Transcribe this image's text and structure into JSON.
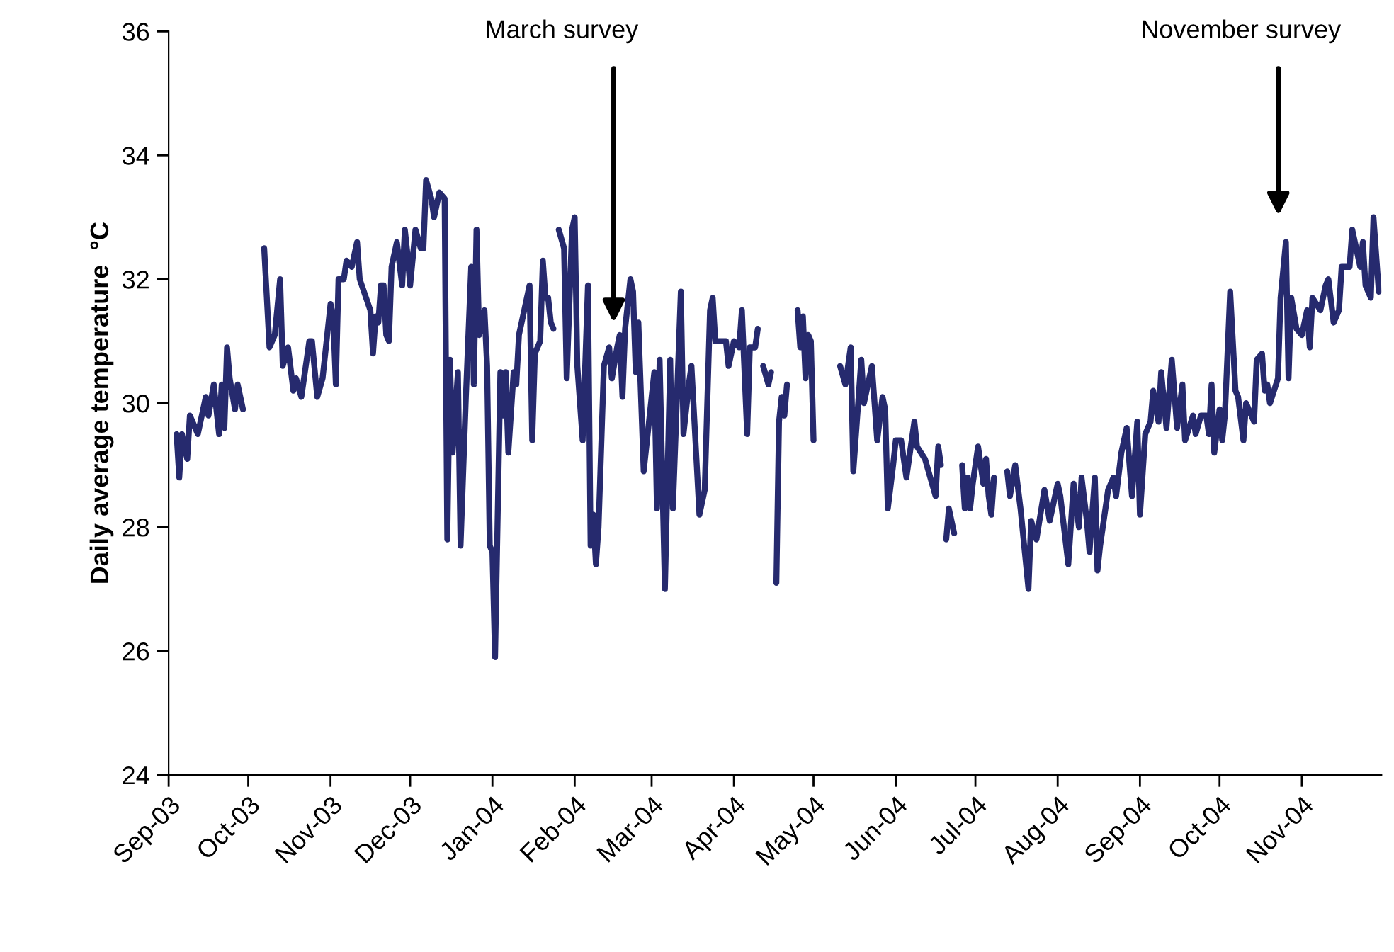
{
  "chart_data": {
    "type": "line",
    "ylabel": "Daily average temperature  °C",
    "line_style": "solid",
    "marker": "none",
    "grid": false,
    "legend": false,
    "xlim": [
      "2003-09-01",
      "2004-12-01"
    ],
    "xticks": [
      {
        "value": "2003-09-01",
        "label": "Sep-03"
      },
      {
        "value": "2003-10-01",
        "label": "Oct-03"
      },
      {
        "value": "2003-11-01",
        "label": "Nov-03"
      },
      {
        "value": "2003-12-01",
        "label": "Dec-03"
      },
      {
        "value": "2004-01-01",
        "label": "Jan-04"
      },
      {
        "value": "2004-02-01",
        "label": "Feb-04"
      },
      {
        "value": "2004-03-01",
        "label": "Mar-04"
      },
      {
        "value": "2004-04-01",
        "label": "Apr-04"
      },
      {
        "value": "2004-05-01",
        "label": "May-04"
      },
      {
        "value": "2004-06-01",
        "label": "Jun-04"
      },
      {
        "value": "2004-07-01",
        "label": "Jul-04"
      },
      {
        "value": "2004-08-01",
        "label": "Aug-04"
      },
      {
        "value": "2004-09-01",
        "label": "Sep-04"
      },
      {
        "value": "2004-10-01",
        "label": "Oct-04"
      },
      {
        "value": "2004-11-01",
        "label": "Nov-04"
      }
    ],
    "ylim": [
      24,
      36
    ],
    "yticks": [
      24,
      26,
      28,
      30,
      32,
      34,
      36
    ],
    "annotations": [
      "March survey",
      "November survey"
    ],
    "series": [
      {
        "color": "#262a6e",
        "x": [
          "2003-09-04",
          "2003-09-05",
          "2003-09-06",
          "2003-09-08",
          "2003-09-09",
          "2003-09-12",
          "2003-09-15",
          "2003-09-16",
          "2003-09-18",
          "2003-09-20",
          "2003-09-21",
          "2003-09-22",
          "2003-09-23",
          "2003-09-24",
          "2003-09-26",
          "2003-09-27",
          "2003-09-29",
          "2003-10-03",
          "2003-10-07",
          "2003-10-09",
          "2003-10-11",
          "2003-10-13",
          "2003-10-14",
          "2003-10-16",
          "2003-10-18",
          "2003-10-19",
          "2003-10-21",
          "2003-10-22",
          "2003-10-24",
          "2003-10-25",
          "2003-10-27",
          "2003-10-29",
          "2003-11-01",
          "2003-11-02",
          "2003-11-03",
          "2003-11-04",
          "2003-11-06",
          "2003-11-07",
          "2003-11-09",
          "2003-11-11",
          "2003-11-12",
          "2003-11-16",
          "2003-11-17",
          "2003-11-18",
          "2003-11-19",
          "2003-11-20",
          "2003-11-21",
          "2003-11-22",
          "2003-11-23",
          "2003-11-24",
          "2003-11-26",
          "2003-11-28",
          "2003-11-29",
          "2003-11-30",
          "2003-12-01",
          "2003-12-03",
          "2003-12-05",
          "2003-12-06",
          "2003-12-07",
          "2003-12-09",
          "2003-12-10",
          "2003-12-12",
          "2003-12-14",
          "2003-12-15",
          "2003-12-16",
          "2003-12-17",
          "2003-12-19",
          "2003-12-20",
          "2003-12-22",
          "2003-12-24",
          "2003-12-25",
          "2003-12-26",
          "2003-12-27",
          "2003-12-29",
          "2003-12-30",
          "2003-12-31",
          "2004-01-01",
          "2004-01-02",
          "2004-01-04",
          "2004-01-05",
          "2004-01-06",
          "2004-01-07",
          "2004-01-09",
          "2004-01-10",
          "2004-01-11",
          "2004-01-13",
          "2004-01-15",
          "2004-01-16",
          "2004-01-17",
          "2004-01-19",
          "2004-01-20",
          "2004-01-21",
          "2004-01-22",
          "2004-01-23",
          "2004-01-24",
          "2004-01-25",
          "2004-01-26",
          "2004-01-28",
          "2004-01-29",
          "2004-01-31",
          "2004-02-01",
          "2004-02-02",
          "2004-02-04",
          "2004-02-06",
          "2004-02-07",
          "2004-02-08",
          "2004-02-09",
          "2004-02-10",
          "2004-02-12",
          "2004-02-14",
          "2004-02-15",
          "2004-02-17",
          "2004-02-18",
          "2004-02-19",
          "2004-02-20",
          "2004-02-22",
          "2004-02-23",
          "2004-02-24",
          "2004-02-25",
          "2004-02-27",
          "2004-03-02",
          "2004-03-03",
          "2004-03-04",
          "2004-03-06",
          "2004-03-08",
          "2004-03-09",
          "2004-03-12",
          "2004-03-13",
          "2004-03-15",
          "2004-03-16",
          "2004-03-19",
          "2004-03-21",
          "2004-03-23",
          "2004-03-24",
          "2004-03-25",
          "2004-03-29",
          "2004-03-30",
          "2004-04-01",
          "2004-04-03",
          "2004-04-04",
          "2004-04-06",
          "2004-04-07",
          "2004-04-09",
          "2004-04-10",
          "2004-04-11",
          "2004-04-12",
          "2004-04-14",
          "2004-04-15",
          "2004-04-16",
          "2004-04-17",
          "2004-04-18",
          "2004-04-19",
          "2004-04-20",
          "2004-04-21",
          "2004-04-23",
          "2004-04-25",
          "2004-04-26",
          "2004-04-27",
          "2004-04-28",
          "2004-04-29",
          "2004-04-30",
          "2004-05-01",
          "2004-05-06",
          "2004-05-11",
          "2004-05-13",
          "2004-05-15",
          "2004-05-16",
          "2004-05-19",
          "2004-05-20",
          "2004-05-23",
          "2004-05-25",
          "2004-05-27",
          "2004-05-28",
          "2004-05-29",
          "2004-05-31",
          "2004-06-01",
          "2004-06-03",
          "2004-06-05",
          "2004-06-08",
          "2004-06-09",
          "2004-06-12",
          "2004-06-14",
          "2004-06-16",
          "2004-06-17",
          "2004-06-18",
          "2004-06-19",
          "2004-06-20",
          "2004-06-21",
          "2004-06-23",
          "2004-06-24",
          "2004-06-26",
          "2004-06-27",
          "2004-06-28",
          "2004-06-29",
          "2004-06-30",
          "2004-07-02",
          "2004-07-04",
          "2004-07-05",
          "2004-07-06",
          "2004-07-07",
          "2004-07-08",
          "2004-07-11",
          "2004-07-13",
          "2004-07-14",
          "2004-07-16",
          "2004-07-18",
          "2004-07-21",
          "2004-07-22",
          "2004-07-24",
          "2004-07-27",
          "2004-07-29",
          "2004-08-01",
          "2004-08-02",
          "2004-08-05",
          "2004-08-07",
          "2004-08-09",
          "2004-08-10",
          "2004-08-12",
          "2004-08-13",
          "2004-08-15",
          "2004-08-16",
          "2004-08-17",
          "2004-08-20",
          "2004-08-22",
          "2004-08-23",
          "2004-08-25",
          "2004-08-27",
          "2004-08-29",
          "2004-08-31",
          "2004-09-01",
          "2004-09-03",
          "2004-09-05",
          "2004-09-06",
          "2004-09-08",
          "2004-09-09",
          "2004-09-11",
          "2004-09-13",
          "2004-09-15",
          "2004-09-17",
          "2004-09-18",
          "2004-09-21",
          "2004-09-22",
          "2004-09-24",
          "2004-09-26",
          "2004-09-27",
          "2004-09-28",
          "2004-09-29",
          "2004-10-01",
          "2004-10-02",
          "2004-10-03",
          "2004-10-05",
          "2004-10-07",
          "2004-10-08",
          "2004-10-10",
          "2004-10-11",
          "2004-10-14",
          "2004-10-15",
          "2004-10-17",
          "2004-10-18",
          "2004-10-19",
          "2004-10-20",
          "2004-10-23",
          "2004-10-24",
          "2004-10-26",
          "2004-10-27",
          "2004-10-28",
          "2004-10-30",
          "2004-11-01",
          "2004-11-03",
          "2004-11-04",
          "2004-11-05",
          "2004-11-08",
          "2004-11-10",
          "2004-11-11",
          "2004-11-13",
          "2004-11-15",
          "2004-11-16",
          "2004-11-19",
          "2004-11-20",
          "2004-11-21",
          "2004-11-23",
          "2004-11-24",
          "2004-11-25",
          "2004-11-27",
          "2004-11-28",
          "2004-11-30"
        ],
        "values": [
          29.5,
          28.8,
          29.5,
          29.1,
          29.8,
          29.5,
          30.1,
          29.8,
          30.3,
          29.5,
          30.3,
          29.6,
          30.9,
          30.4,
          29.9,
          30.3,
          29.9,
          null,
          32.5,
          30.9,
          31.1,
          32.0,
          30.6,
          30.9,
          30.2,
          30.4,
          30.1,
          30.4,
          31.0,
          31.0,
          30.1,
          30.4,
          31.6,
          31.4,
          30.3,
          32.0,
          32.0,
          32.3,
          32.2,
          32.6,
          32.0,
          31.5,
          30.8,
          31.4,
          31.3,
          31.9,
          31.9,
          31.1,
          31.0,
          32.2,
          32.6,
          31.9,
          32.8,
          32.4,
          31.9,
          32.8,
          32.5,
          32.5,
          33.6,
          33.3,
          33.0,
          33.4,
          33.3,
          27.8,
          30.7,
          29.2,
          30.5,
          27.7,
          30.1,
          32.2,
          30.3,
          32.8,
          31.1,
          31.5,
          30.6,
          27.7,
          27.6,
          25.9,
          30.5,
          29.8,
          30.5,
          29.2,
          30.5,
          30.3,
          31.1,
          31.5,
          31.9,
          29.4,
          30.8,
          31.0,
          32.3,
          31.7,
          31.7,
          31.3,
          31.2,
          null,
          32.8,
          32.5,
          30.4,
          32.8,
          33.0,
          30.6,
          29.4,
          31.9,
          27.7,
          28.2,
          27.4,
          28.0,
          30.6,
          30.9,
          30.4,
          30.9,
          31.1,
          30.1,
          31.2,
          32.0,
          31.8,
          30.5,
          31.3,
          28.9,
          30.5,
          28.3,
          30.7,
          27.0,
          30.7,
          28.3,
          31.8,
          29.5,
          30.3,
          30.6,
          28.2,
          28.6,
          31.5,
          31.7,
          31.0,
          31.0,
          30.6,
          31.0,
          30.9,
          31.5,
          29.5,
          30.9,
          30.9,
          31.2,
          null,
          30.6,
          30.3,
          30.5,
          null,
          27.1,
          29.7,
          30.1,
          29.8,
          30.3,
          null,
          31.5,
          30.9,
          31.4,
          30.4,
          31.1,
          31.0,
          29.4,
          null,
          30.6,
          30.3,
          30.9,
          28.9,
          30.7,
          30.0,
          30.6,
          29.4,
          30.1,
          29.9,
          28.3,
          29.0,
          29.4,
          29.4,
          28.8,
          29.7,
          29.3,
          29.1,
          28.8,
          28.5,
          29.3,
          29.0,
          null,
          27.8,
          28.3,
          27.9,
          null,
          29.0,
          28.3,
          28.8,
          28.3,
          28.7,
          29.3,
          28.7,
          29.1,
          28.5,
          28.2,
          28.8,
          null,
          28.9,
          28.5,
          29.0,
          28.3,
          27.0,
          28.1,
          27.8,
          28.6,
          28.1,
          28.7,
          28.5,
          27.4,
          28.7,
          28.0,
          28.8,
          28.1,
          27.6,
          28.8,
          27.3,
          27.7,
          28.6,
          28.8,
          28.5,
          29.2,
          29.6,
          28.5,
          29.7,
          28.2,
          29.5,
          29.7,
          30.2,
          29.7,
          30.5,
          29.6,
          30.7,
          29.6,
          30.3,
          29.4,
          29.8,
          29.5,
          29.8,
          29.8,
          29.5,
          30.3,
          29.2,
          29.9,
          29.4,
          29.8,
          31.8,
          30.2,
          30.1,
          29.4,
          30.0,
          29.7,
          30.7,
          30.8,
          30.2,
          30.3,
          30.0,
          30.4,
          31.7,
          32.6,
          30.4,
          31.7,
          31.2,
          31.1,
          31.5,
          30.9,
          31.7,
          31.5,
          31.9,
          32.0,
          31.3,
          31.5,
          32.2,
          32.2,
          32.8,
          32.6,
          32.2,
          32.6,
          31.9,
          31.7,
          33.0,
          31.8
        ]
      }
    ]
  }
}
